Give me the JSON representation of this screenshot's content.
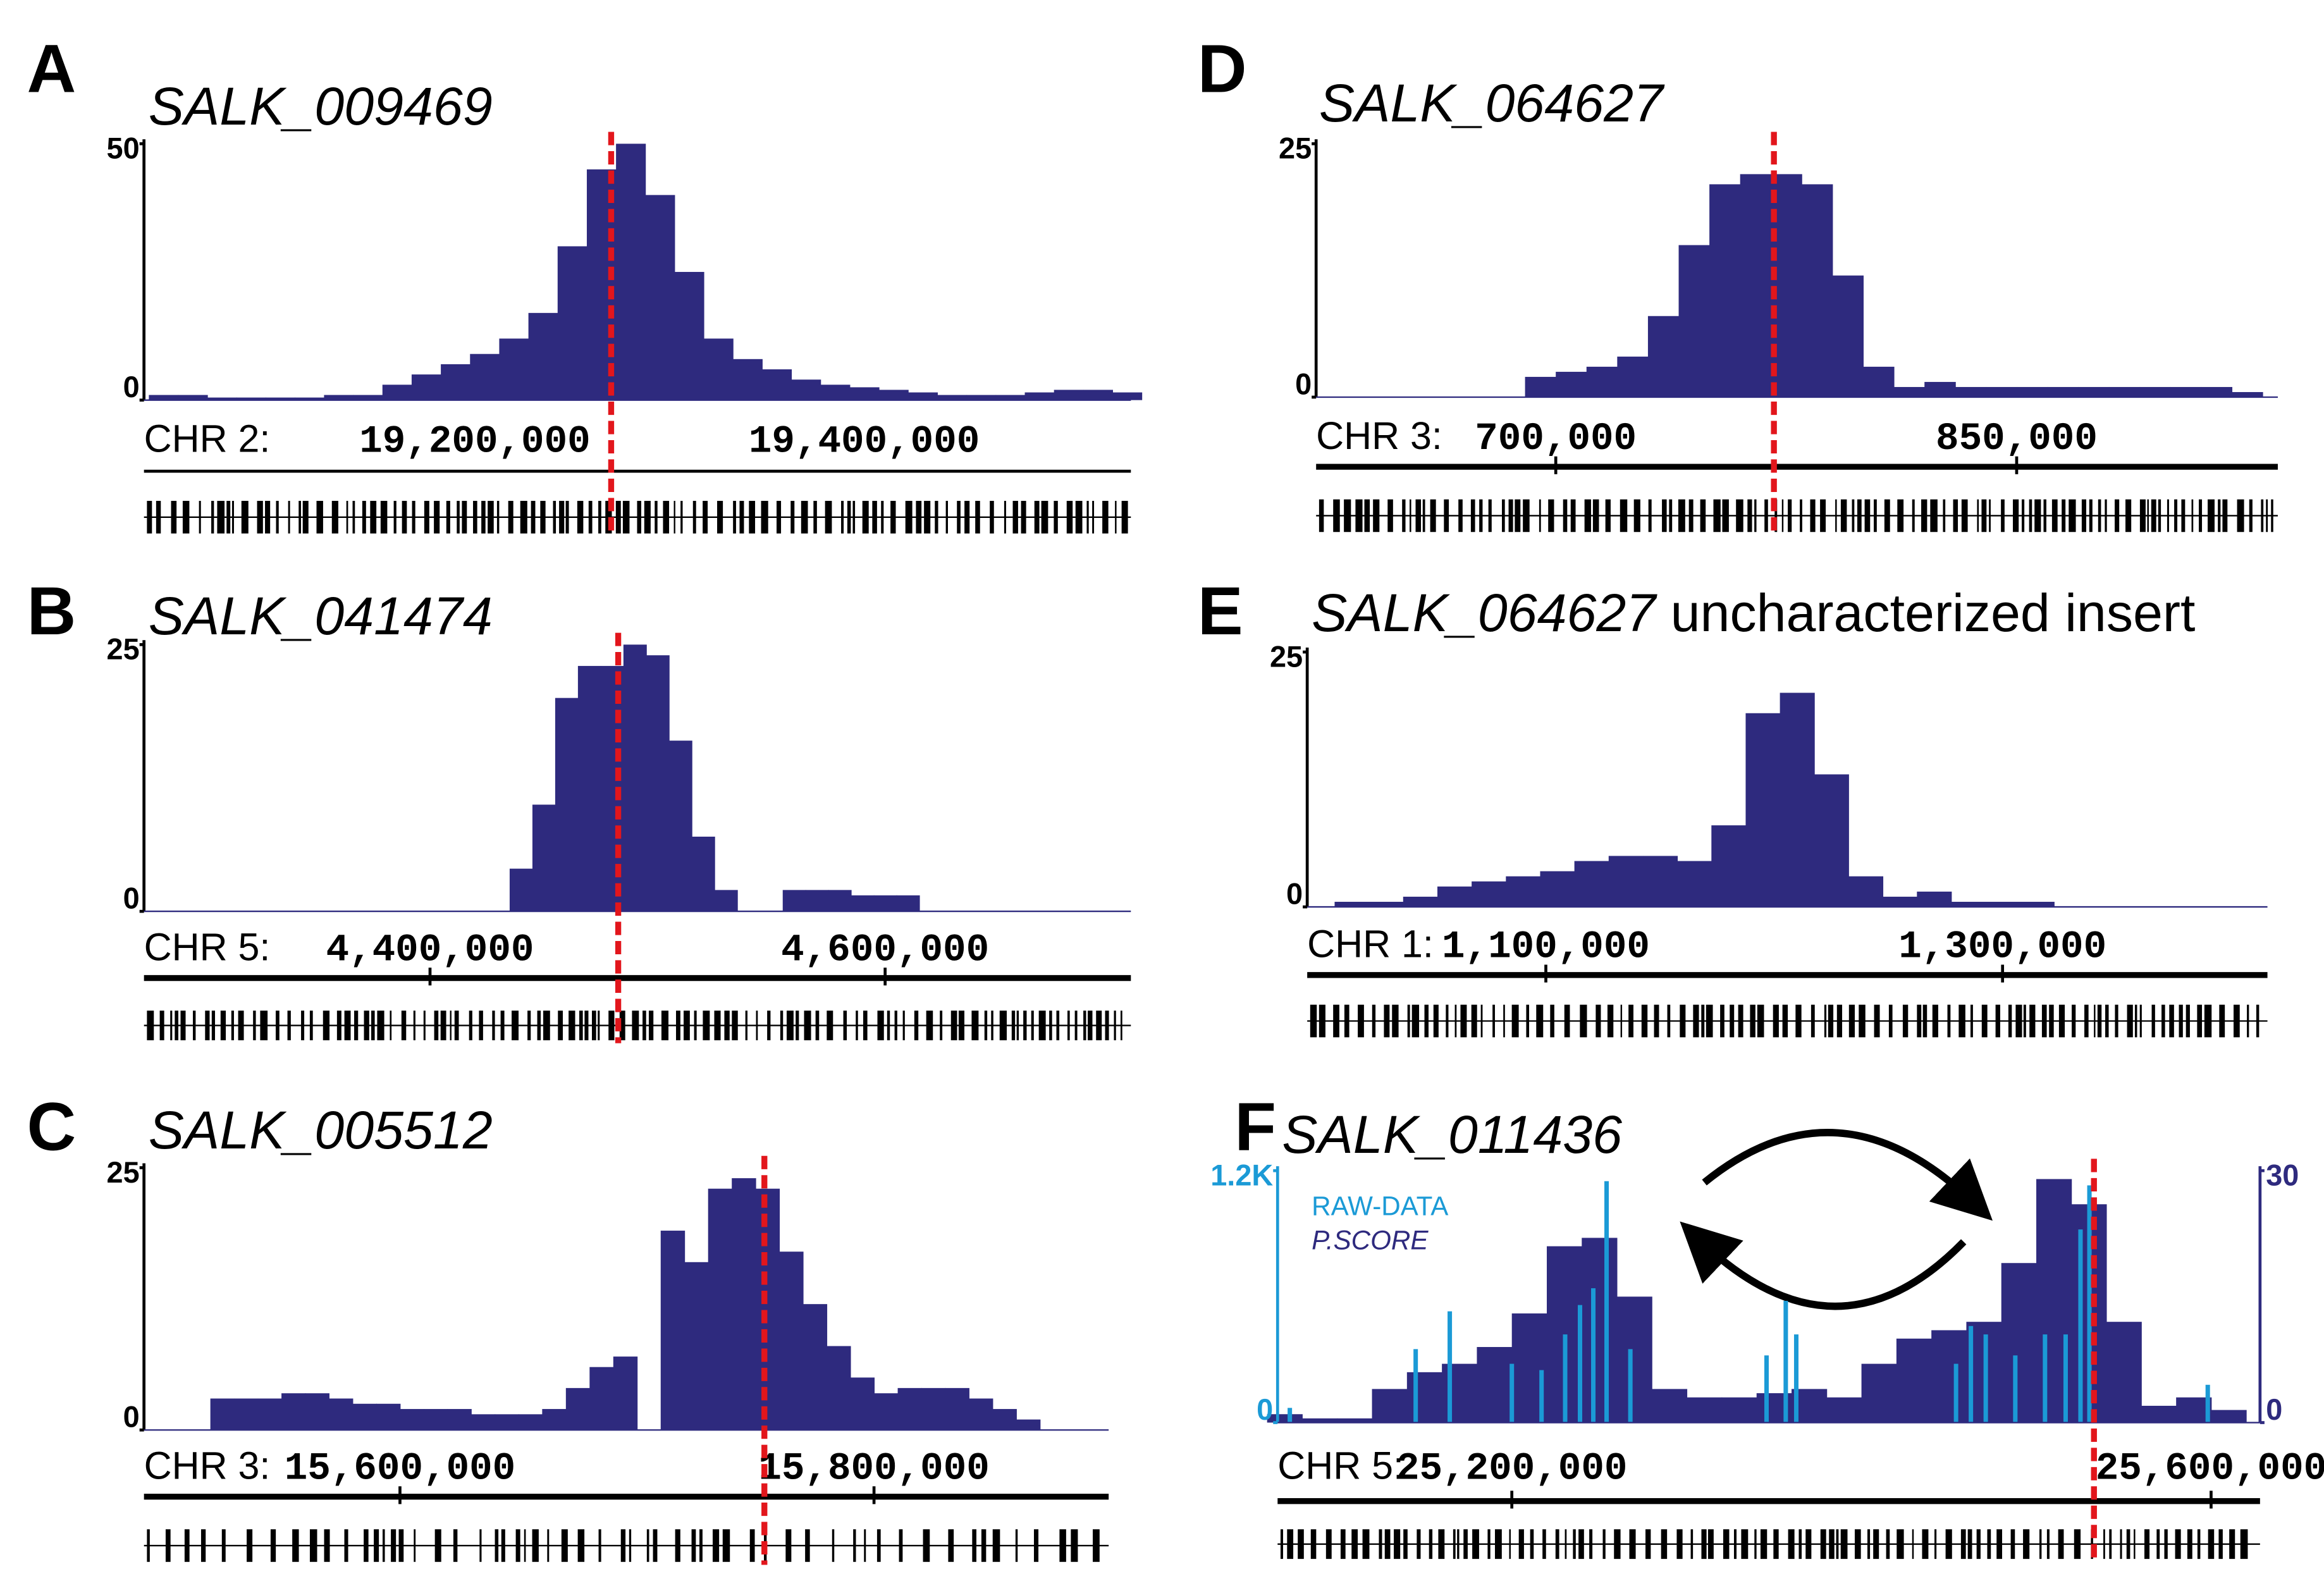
{
  "chart_data": [
    {
      "type": "histogram",
      "panel": "A",
      "title": "SALK_009469",
      "xlabel": "CHR 2:",
      "color": "#2e2a7e",
      "x": [
        19040000,
        19055000,
        19070000,
        19085000,
        19100000,
        19115000,
        19130000,
        19145000,
        19160000,
        19175000,
        19190000,
        19205000,
        19220000,
        19235000,
        19250000,
        19265000,
        19280000,
        19295000,
        19310000,
        19325000,
        19340000,
        19355000,
        19370000,
        19385000,
        19400000,
        19415000,
        19430000,
        19445000,
        19460000,
        19475000,
        19490000,
        19505000,
        19520000,
        19535000
      ],
      "values": [
        1,
        1,
        0.5,
        0.5,
        0.5,
        0.5,
        1,
        1,
        3,
        5,
        7,
        9,
        12,
        17,
        30,
        45,
        50,
        40,
        25,
        12,
        8,
        6,
        4,
        3,
        2.5,
        2,
        1.5,
        1,
        1,
        1,
        1.5,
        2,
        2,
        1.5
      ],
      "xlim": [
        19030000,
        19537000
      ],
      "ylim": [
        0,
        50
      ],
      "yticks": [
        0,
        50
      ],
      "xticks": [
        {
          "value": 19200000,
          "label": "19,200,000"
        },
        {
          "value": 19400000,
          "label": "19,400,000"
        }
      ],
      "xtick_marks": false,
      "marker": 19270000
    },
    {
      "type": "histogram",
      "panel": "B",
      "title": "SALK_041474",
      "xlabel": "CHR 5:",
      "color": "#2e2a7e",
      "x": [
        4280000,
        4290000,
        4300000,
        4310000,
        4320000,
        4330000,
        4340000,
        4350000,
        4360000,
        4370000,
        4380000,
        4390000,
        4400000,
        4410000,
        4420000,
        4430000,
        4440000,
        4450000,
        4460000,
        4470000,
        4480000,
        4490000,
        4500000,
        4510000,
        4520000,
        4530000,
        4540000,
        4550000,
        4560000,
        4570000,
        4580000,
        4590000,
        4600000,
        4610000,
        4620000,
        4630000,
        4640000,
        4650000,
        4660000,
        4670000,
        4680000,
        4690000,
        4700000
      ],
      "values": [
        0,
        0,
        0,
        0,
        0,
        0,
        0,
        0,
        0,
        0,
        0,
        0,
        0,
        0,
        0,
        0,
        4,
        10,
        20,
        23,
        23,
        25,
        24,
        16,
        7,
        2,
        0,
        0,
        2,
        2,
        2,
        1.5,
        1.5,
        1.5,
        0,
        0,
        0,
        0,
        0,
        0,
        0,
        0,
        0
      ],
      "xlim": [
        4274300,
        4708000
      ],
      "ylim": [
        0,
        25
      ],
      "yticks": [
        0,
        25
      ],
      "xticks": [
        {
          "value": 4400000,
          "label": "4,400,000"
        },
        {
          "value": 4600000,
          "label": "4,600,000"
        }
      ],
      "xtick_marks": true,
      "marker": 4482700
    },
    {
      "type": "histogram",
      "panel": "C",
      "title": "SALK_005512",
      "xlabel": "CHR 3:",
      "color": "#2e2a7e",
      "x": [
        15495000,
        15505000,
        15515000,
        15525000,
        15535000,
        15545000,
        15555000,
        15565000,
        15575000,
        15585000,
        15595000,
        15605000,
        15615000,
        15625000,
        15635000,
        15645000,
        15655000,
        15665000,
        15675000,
        15685000,
        15695000,
        15705000,
        15715000,
        15725000,
        15735000,
        15745000,
        15755000,
        15765000,
        15775000,
        15785000,
        15795000,
        15805000,
        15815000,
        15825000,
        15835000,
        15845000,
        15855000,
        15865000,
        15875000,
        15885000,
        15895000
      ],
      "values": [
        0,
        0,
        0,
        3,
        3,
        3,
        3.5,
        3.5,
        3,
        2.5,
        2.5,
        2,
        2,
        2,
        1.5,
        1.5,
        1.5,
        2,
        4,
        6,
        7,
        0,
        19,
        16,
        23,
        24,
        23,
        17,
        12,
        8,
        5,
        3.5,
        4,
        4,
        4,
        3,
        2,
        1,
        0,
        0,
        0
      ],
      "xlim": [
        15492000,
        15899000
      ],
      "ylim": [
        0,
        25
      ],
      "yticks": [
        0,
        25
      ],
      "xticks": [
        {
          "value": 15600000,
          "label": "15,600,000"
        },
        {
          "value": 15800000,
          "label": "15,800,000"
        }
      ],
      "xtick_marks": true,
      "marker": 15753750
    },
    {
      "type": "histogram",
      "panel": "D",
      "title": "SALK_064627",
      "xlabel": "CHR 3:",
      "color": "#2e2a7e",
      "x": [
        625000,
        635000,
        645000,
        655000,
        665000,
        675000,
        685000,
        695000,
        705000,
        715000,
        725000,
        735000,
        745000,
        755000,
        765000,
        775000,
        785000,
        795000,
        805000,
        815000,
        825000,
        835000,
        845000,
        855000,
        865000,
        875000,
        885000,
        895000,
        905000,
        915000,
        925000
      ],
      "values": [
        0,
        0,
        0,
        0,
        0,
        0,
        0,
        2,
        2.5,
        3,
        4,
        8,
        15,
        21,
        22,
        22,
        21,
        12,
        3,
        1,
        1.5,
        1,
        1,
        1,
        1,
        1,
        1,
        1,
        1,
        1,
        0.5
      ],
      "xlim": [
        622000,
        935000
      ],
      "ylim": [
        0,
        25
      ],
      "yticks": [
        0,
        25
      ],
      "xticks": [
        {
          "value": 700000,
          "label": "700,000"
        },
        {
          "value": 850000,
          "label": "850,000"
        }
      ],
      "xtick_marks": true,
      "marker": 771000
    },
    {
      "type": "histogram",
      "panel": "E",
      "title": "SALK_064627",
      "subtitle": "uncharacterized insert",
      "xlabel": "CHR 1:",
      "color": "#2e2a7e",
      "x": [
        1000000,
        1015000,
        1030000,
        1045000,
        1060000,
        1075000,
        1090000,
        1105000,
        1120000,
        1135000,
        1150000,
        1165000,
        1180000,
        1195000,
        1210000,
        1225000,
        1240000,
        1255000,
        1270000,
        1285000,
        1300000,
        1315000,
        1330000,
        1345000,
        1360000,
        1375000,
        1390000,
        1405000
      ],
      "values": [
        0,
        0.5,
        0.5,
        1,
        2,
        2.5,
        3,
        3.5,
        4.5,
        5,
        5,
        4.5,
        8,
        19,
        21,
        13,
        3,
        1,
        1.5,
        0.5,
        0.5,
        0.5,
        0,
        0,
        0,
        0,
        0,
        0
      ],
      "xlim": [
        995500,
        1416000
      ],
      "ylim": [
        0,
        25
      ],
      "yticks": [
        0,
        25
      ],
      "xticks": [
        {
          "value": 1100000,
          "label": "1,100,000"
        },
        {
          "value": 1300000,
          "label": "1,300,000"
        }
      ],
      "xtick_marks": true
    },
    {
      "type": "histogram",
      "panel": "F",
      "title": "SALK_011436",
      "xlabel": "CHR 5:",
      "series": [
        {
          "name": "P.SCORE",
          "type": "histogram",
          "axis": "y2",
          "color": "#2e2a7e",
          "x": [
            25070000,
            25090000,
            25110000,
            25130000,
            25150000,
            25170000,
            25190000,
            25210000,
            25230000,
            25250000,
            25270000,
            25290000,
            25310000,
            25330000,
            25350000,
            25370000,
            25390000,
            25410000,
            25430000,
            25450000,
            25470000,
            25490000,
            25510000,
            25530000,
            25550000,
            25570000,
            25590000,
            25610000
          ],
          "values": [
            1,
            0.5,
            0.5,
            4,
            6,
            7,
            9,
            13,
            21,
            22,
            15,
            4,
            3,
            3,
            3.5,
            4,
            3,
            7,
            10,
            11,
            12,
            19,
            29,
            26,
            12,
            2,
            3,
            1.5
          ]
        },
        {
          "name": "RAW-DATA",
          "type": "bar",
          "axis": "y",
          "color": "#1b9ad6",
          "x": [
            25073000,
            25145000,
            25164500,
            25200000,
            25217000,
            25230500,
            25239000,
            25246600,
            25254200,
            25267800,
            25345700,
            25356700,
            25362700,
            25454100,
            25462600,
            25471100,
            25488000,
            25505000,
            25516800,
            25525300,
            25530400,
            25598100
          ],
          "values": [
            70,
            350,
            530,
            280,
            250,
            420,
            560,
            640,
            1150,
            350,
            320,
            580,
            420,
            280,
            460,
            420,
            320,
            420,
            420,
            920,
            1130,
            180
          ]
        }
      ],
      "xlim": [
        25066000,
        25628000
      ],
      "ylim": [
        0,
        1200
      ],
      "yticks": [
        0,
        {
          "value": 1200,
          "label": "1.2K"
        }
      ],
      "y2lim": [
        0,
        30
      ],
      "y2ticks": [
        0,
        30
      ],
      "xticks": [
        {
          "value": 25200000,
          "label": "25,200,000"
        },
        {
          "value": 25600000,
          "label": "25,600,000"
        }
      ],
      "xtick_marks": true,
      "marker": 25533000
    }
  ]
}
